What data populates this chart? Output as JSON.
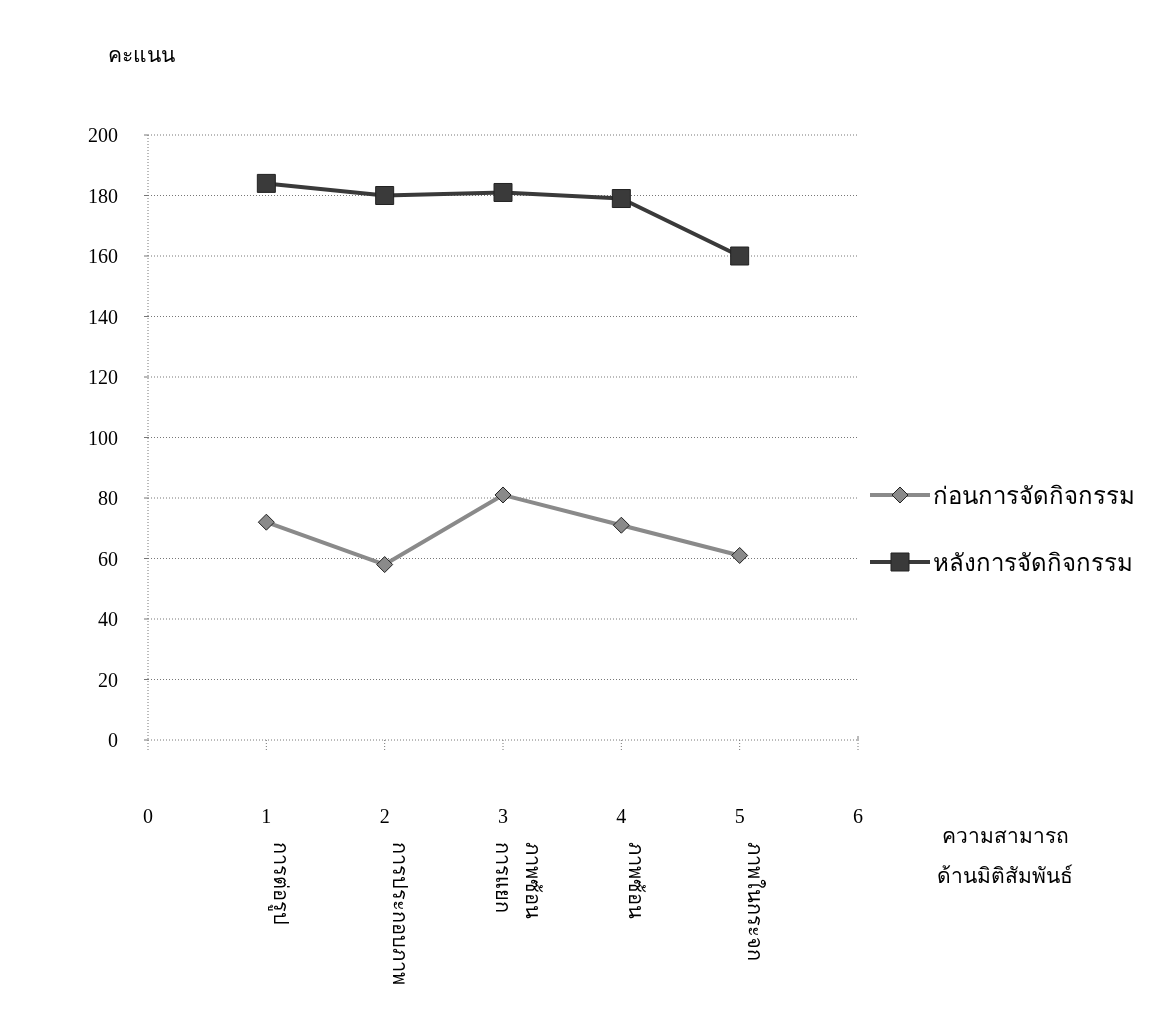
{
  "chart_data": {
    "type": "line",
    "ylabel": "คะแนน",
    "xlabel": "ความสามารถ\nด้านมิติสัมพันธ์",
    "x": [
      1,
      2,
      3,
      4,
      5
    ],
    "series": [
      {
        "name": "ก่อนการจัดกิจกรรม",
        "color": "#8a8a8a",
        "marker": "diamond",
        "values": [
          72,
          58,
          81,
          71,
          61
        ]
      },
      {
        "name": "หลังการจัดกิจกรรม",
        "color": "#3a3a3a",
        "marker": "square",
        "values": [
          184,
          180,
          181,
          179,
          160
        ]
      }
    ],
    "xlim": [
      0,
      6
    ],
    "xticks": [
      0,
      1,
      2,
      3,
      4,
      5,
      6
    ],
    "ylim": [
      0,
      200
    ],
    "yticks": [
      0,
      20,
      40,
      60,
      80,
      100,
      120,
      140,
      160,
      180,
      200
    ],
    "grid": "y",
    "legend": "right",
    "line_style": "solid",
    "annotations": [
      "การต่อรูป",
      "การประกอบภาพ",
      "การแยก\nภาพซ้อน",
      "ภาพซ้อน",
      "ภาพในกระจก"
    ]
  }
}
